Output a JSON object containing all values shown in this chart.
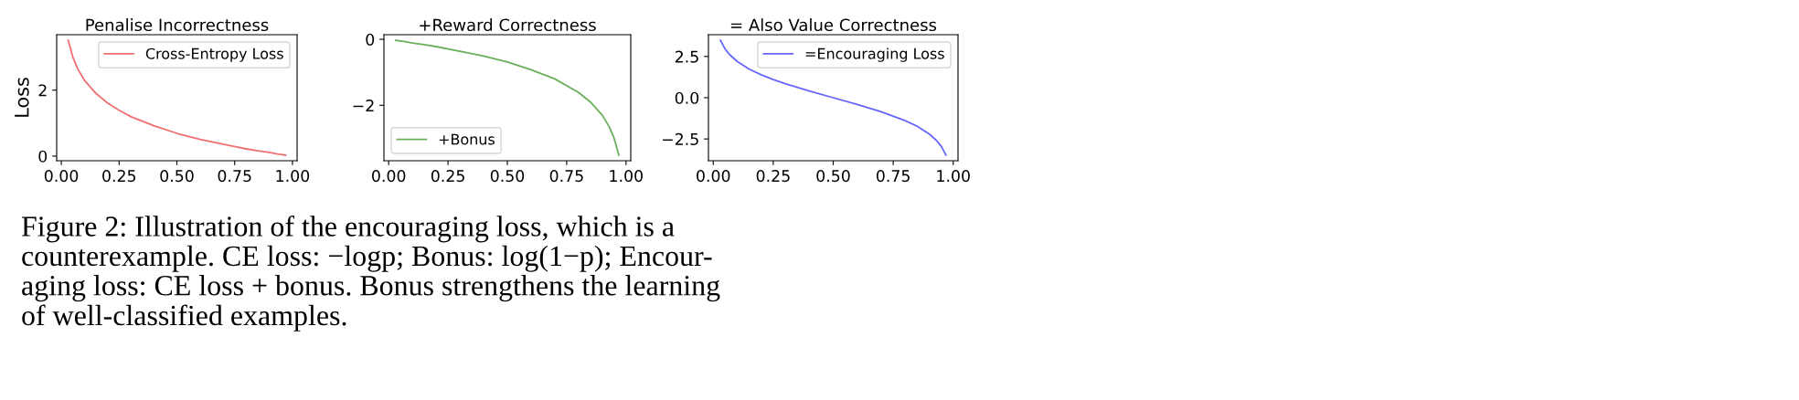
{
  "chart_data": [
    {
      "type": "line",
      "title": "Penalise Incorrectness",
      "ylabel": "Loss",
      "x": [
        0.03,
        0.05,
        0.07,
        0.1,
        0.15,
        0.2,
        0.25,
        0.3,
        0.4,
        0.5,
        0.6,
        0.7,
        0.8,
        0.85,
        0.9,
        0.93,
        0.95,
        0.97
      ],
      "series": [
        {
          "name": "Cross-Entropy Loss",
          "color": "#f07070",
          "values": [
            3.51,
            3.0,
            2.66,
            2.3,
            1.9,
            1.61,
            1.39,
            1.2,
            0.92,
            0.69,
            0.51,
            0.36,
            0.22,
            0.16,
            0.11,
            0.07,
            0.05,
            0.03
          ]
        }
      ],
      "xlim": [
        -0.02,
        1.02
      ],
      "xticks": [
        {
          "value": 0,
          "label": "0.00"
        },
        {
          "value": 0.25,
          "label": "0.25"
        },
        {
          "value": 0.5,
          "label": "0.50"
        },
        {
          "value": 0.75,
          "label": "0.75"
        },
        {
          "value": 1,
          "label": "1.00"
        }
      ],
      "ylim": [
        -0.14,
        3.68
      ],
      "yticks": [
        0,
        2
      ],
      "legend": "top right",
      "grid": false,
      "annotations": [
        "Figure 2: Illustration of the encouraging loss, which is a\ncounterexample. CE loss: −logp; Bonus: log(1−p); Encour-\naging loss: CE loss + bonus. Bonus strengthens the learning\nof well-classified examples."
      ]
    },
    {
      "type": "line",
      "title": "+Reward Correctness",
      "x": [
        0.03,
        0.05,
        0.07,
        0.1,
        0.15,
        0.2,
        0.25,
        0.3,
        0.4,
        0.5,
        0.6,
        0.7,
        0.8,
        0.85,
        0.9,
        0.93,
        0.95,
        0.97
      ],
      "series": [
        {
          "name": "+Bonus",
          "color": "#6aaf5a",
          "values": [
            -0.03,
            -0.05,
            -0.07,
            -0.11,
            -0.16,
            -0.22,
            -0.29,
            -0.36,
            -0.51,
            -0.69,
            -0.92,
            -1.2,
            -1.61,
            -1.9,
            -2.3,
            -2.66,
            -3.0,
            -3.51
          ]
        }
      ],
      "xlim": [
        -0.02,
        1.02
      ],
      "xticks": [
        {
          "value": 0,
          "label": "0.00"
        },
        {
          "value": 0.25,
          "label": "0.25"
        },
        {
          "value": 0.5,
          "label": "0.50"
        },
        {
          "value": 0.75,
          "label": "0.75"
        },
        {
          "value": 1,
          "label": "1.00"
        }
      ],
      "ylim": [
        -3.68,
        0.14
      ],
      "yticks": [
        {
          "value": -2,
          "label": "−2"
        },
        0
      ],
      "legend": "bottom left",
      "grid": false
    },
    {
      "type": "line",
      "title": "= Also Value Correctness",
      "x": [
        0.03,
        0.05,
        0.07,
        0.1,
        0.15,
        0.2,
        0.25,
        0.3,
        0.4,
        0.5,
        0.6,
        0.7,
        0.8,
        0.85,
        0.9,
        0.93,
        0.95,
        0.97
      ],
      "series": [
        {
          "name": "=Encouraging Loss",
          "color": "#6666ff",
          "values": [
            3.48,
            2.94,
            2.59,
            2.2,
            1.73,
            1.39,
            1.1,
            0.85,
            0.41,
            0.0,
            -0.41,
            -0.85,
            -1.39,
            -1.73,
            -2.2,
            -2.59,
            -2.94,
            -3.48
          ]
        }
      ],
      "xlim": [
        -0.02,
        1.02
      ],
      "xticks": [
        {
          "value": 0,
          "label": "0.00"
        },
        {
          "value": 0.25,
          "label": "0.25"
        },
        {
          "value": 0.5,
          "label": "0.50"
        },
        {
          "value": 0.75,
          "label": "0.75"
        },
        {
          "value": 1,
          "label": "1.00"
        }
      ],
      "ylim": [
        -3.82,
        3.82
      ],
      "yticks": [
        {
          "value": -2.5,
          "label": "−2.5"
        },
        {
          "value": 0,
          "label": "0.0"
        },
        {
          "value": 2.5,
          "label": "2.5"
        }
      ],
      "legend": "top right",
      "grid": false
    }
  ]
}
